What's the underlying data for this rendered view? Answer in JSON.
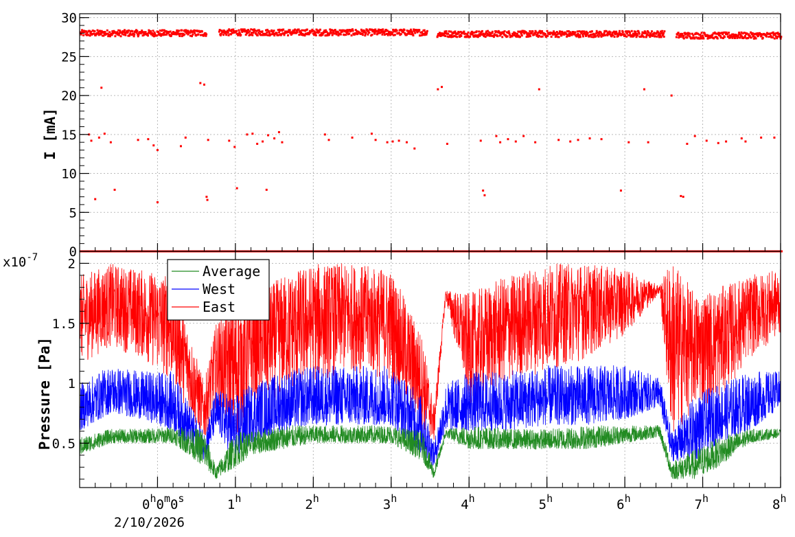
{
  "chart_data": [
    {
      "type": "scatter",
      "ylabel": "I [mA]",
      "ylim": [
        0,
        30.5
      ],
      "yticks": [
        0,
        5,
        10,
        15,
        20,
        25,
        30
      ],
      "ytick_labels": [
        "0",
        "5",
        "10",
        "15",
        "20",
        "25",
        "30"
      ],
      "grid": true,
      "series": [
        {
          "color": "#ff0000",
          "description": "beam current sampled every few seconds, mostly ~28 mA with a baseline near 0 and scattered mid-level points",
          "band_segments": [
            {
              "x": [
                -1.0,
                0.62
              ],
              "y_center": 28.0
            },
            {
              "x": [
                0.78,
                3.45
              ],
              "y_center": 28.1
            },
            {
              "x": [
                3.58,
                6.5
              ],
              "y_center": 27.9
            },
            {
              "x": [
                6.65,
                8.0
              ],
              "y_center": 27.7
            }
          ],
          "baseline_value": 0.0,
          "scattered_points": [
            [
              -0.88,
              15.0
            ],
            [
              -0.85,
              14.2
            ],
            [
              -0.8,
              6.7
            ],
            [
              -0.75,
              14.6
            ],
            [
              -0.72,
              21.0
            ],
            [
              -0.68,
              15.1
            ],
            [
              -0.6,
              14.0
            ],
            [
              -0.55,
              7.9
            ],
            [
              -0.25,
              14.3
            ],
            [
              -0.12,
              14.4
            ],
            [
              -0.05,
              13.6
            ],
            [
              0.0,
              13.0
            ],
            [
              0.0,
              6.3
            ],
            [
              0.3,
              13.5
            ],
            [
              0.36,
              14.6
            ],
            [
              0.55,
              21.6
            ],
            [
              0.6,
              21.4
            ],
            [
              0.63,
              7.0
            ],
            [
              0.64,
              6.6
            ],
            [
              0.65,
              14.3
            ],
            [
              0.92,
              14.2
            ],
            [
              0.99,
              13.4
            ],
            [
              1.02,
              8.1
            ],
            [
              1.15,
              15.0
            ],
            [
              1.22,
              15.1
            ],
            [
              1.28,
              13.8
            ],
            [
              1.35,
              14.1
            ],
            [
              1.4,
              7.9
            ],
            [
              1.42,
              14.9
            ],
            [
              1.5,
              14.5
            ],
            [
              1.56,
              15.3
            ],
            [
              1.6,
              14.0
            ],
            [
              2.15,
              15.0
            ],
            [
              2.2,
              14.3
            ],
            [
              2.5,
              14.6
            ],
            [
              2.75,
              15.1
            ],
            [
              2.8,
              14.3
            ],
            [
              2.95,
              14.0
            ],
            [
              3.02,
              14.1
            ],
            [
              3.1,
              14.2
            ],
            [
              3.2,
              14.0
            ],
            [
              3.3,
              13.2
            ],
            [
              3.6,
              20.8
            ],
            [
              3.65,
              21.1
            ],
            [
              3.72,
              13.8
            ],
            [
              4.15,
              14.2
            ],
            [
              4.18,
              7.8
            ],
            [
              4.2,
              7.2
            ],
            [
              4.35,
              14.8
            ],
            [
              4.4,
              14.0
            ],
            [
              4.5,
              14.4
            ],
            [
              4.6,
              14.1
            ],
            [
              4.7,
              14.8
            ],
            [
              4.85,
              14.0
            ],
            [
              4.9,
              20.8
            ],
            [
              5.15,
              14.3
            ],
            [
              5.3,
              14.1
            ],
            [
              5.4,
              14.3
            ],
            [
              5.55,
              14.5
            ],
            [
              5.7,
              14.4
            ],
            [
              5.95,
              7.8
            ],
            [
              6.05,
              14.0
            ],
            [
              6.25,
              20.8
            ],
            [
              6.3,
              14.0
            ],
            [
              6.6,
              20.0
            ],
            [
              6.72,
              7.1
            ],
            [
              6.75,
              7.0
            ],
            [
              6.8,
              13.8
            ],
            [
              6.9,
              14.8
            ],
            [
              7.05,
              14.2
            ],
            [
              7.2,
              13.9
            ],
            [
              7.3,
              14.1
            ],
            [
              7.5,
              14.5
            ],
            [
              7.55,
              14.1
            ],
            [
              7.75,
              14.6
            ],
            [
              7.92,
              14.6
            ]
          ]
        }
      ]
    },
    {
      "type": "line",
      "ylabel": "Pressure [Pa]",
      "y_multiplier": "x10",
      "y_exponent": "-7",
      "ylim": [
        0.13,
        2.1
      ],
      "yticks": [
        0.5,
        1.0,
        1.5,
        2.0
      ],
      "ytick_labels": [
        "0.5",
        "1",
        "1.5",
        "2"
      ],
      "xlim": [
        -1.0,
        8.0
      ],
      "xticks": [
        0,
        1,
        2,
        3,
        4,
        5,
        6,
        7,
        8
      ],
      "x_tick_hours": [
        "0",
        "1",
        "2",
        "3",
        "4",
        "5",
        "6",
        "7",
        "8"
      ],
      "x_tick_hour_suffix": "h",
      "x_origin_label": {
        "h": "0",
        "m": "0",
        "s": "0",
        "date": "2/10/2026"
      },
      "grid": true,
      "legend_placement": "top-left",
      "series": [
        {
          "name": "Average",
          "color": "#228b22",
          "envelope": [
            [
              -1.0,
              0.4,
              0.55
            ],
            [
              -0.6,
              0.5,
              0.62
            ],
            [
              -0.2,
              0.5,
              0.62
            ],
            [
              0.2,
              0.5,
              0.64
            ],
            [
              0.6,
              0.3,
              0.62
            ],
            [
              0.75,
              0.2,
              0.3
            ],
            [
              1.0,
              0.3,
              0.6
            ],
            [
              1.2,
              0.4,
              0.6
            ],
            [
              1.6,
              0.45,
              0.65
            ],
            [
              2.0,
              0.5,
              0.65
            ],
            [
              2.5,
              0.5,
              0.65
            ],
            [
              3.0,
              0.5,
              0.65
            ],
            [
              3.4,
              0.35,
              0.6
            ],
            [
              3.55,
              0.2,
              0.3
            ],
            [
              3.7,
              0.55,
              0.62
            ],
            [
              4.0,
              0.45,
              0.65
            ],
            [
              4.5,
              0.45,
              0.62
            ],
            [
              5.0,
              0.45,
              0.62
            ],
            [
              5.5,
              0.45,
              0.65
            ],
            [
              6.0,
              0.5,
              0.65
            ],
            [
              6.45,
              0.55,
              0.65
            ],
            [
              6.6,
              0.2,
              0.35
            ],
            [
              6.9,
              0.2,
              0.45
            ],
            [
              7.2,
              0.3,
              0.55
            ],
            [
              7.6,
              0.5,
              0.62
            ],
            [
              8.0,
              0.55,
              0.62
            ]
          ]
        },
        {
          "name": "West",
          "color": "#0000ff",
          "envelope": [
            [
              -1.0,
              0.6,
              1.0
            ],
            [
              -0.6,
              0.75,
              1.15
            ],
            [
              -0.2,
              0.7,
              1.1
            ],
            [
              0.2,
              0.6,
              1.1
            ],
            [
              0.6,
              0.35,
              0.6
            ],
            [
              0.75,
              0.6,
              0.95
            ],
            [
              1.0,
              0.35,
              0.9
            ],
            [
              1.2,
              0.5,
              1.0
            ],
            [
              1.6,
              0.6,
              1.1
            ],
            [
              2.0,
              0.65,
              1.15
            ],
            [
              2.5,
              0.65,
              1.15
            ],
            [
              3.0,
              0.65,
              1.15
            ],
            [
              3.4,
              0.4,
              0.9
            ],
            [
              3.55,
              0.3,
              0.5
            ],
            [
              3.7,
              0.6,
              1.0
            ],
            [
              4.0,
              0.6,
              1.1
            ],
            [
              4.5,
              0.6,
              1.1
            ],
            [
              5.0,
              0.65,
              1.15
            ],
            [
              5.5,
              0.65,
              1.15
            ],
            [
              6.0,
              0.7,
              1.15
            ],
            [
              6.45,
              0.8,
              1.05
            ],
            [
              6.6,
              0.35,
              0.6
            ],
            [
              6.9,
              0.35,
              0.9
            ],
            [
              7.2,
              0.5,
              1.0
            ],
            [
              7.6,
              0.6,
              1.1
            ],
            [
              8.0,
              0.8,
              1.1
            ]
          ]
        },
        {
          "name": "East",
          "color": "#ff0000",
          "envelope": [
            [
              -1.0,
              1.15,
              1.9
            ],
            [
              -0.6,
              1.3,
              2.0
            ],
            [
              -0.2,
              1.2,
              1.95
            ],
            [
              0.2,
              1.0,
              1.9
            ],
            [
              0.6,
              0.5,
              1.0
            ],
            [
              0.75,
              0.8,
              1.5
            ],
            [
              1.0,
              0.5,
              1.7
            ],
            [
              1.2,
              0.8,
              1.7
            ],
            [
              1.6,
              0.9,
              1.9
            ],
            [
              2.0,
              1.0,
              2.0
            ],
            [
              2.5,
              1.1,
              2.0
            ],
            [
              3.0,
              1.0,
              1.95
            ],
            [
              3.4,
              0.6,
              1.4
            ],
            [
              3.55,
              0.5,
              0.8
            ],
            [
              3.7,
              1.7,
              1.78
            ],
            [
              4.0,
              0.8,
              1.75
            ],
            [
              4.5,
              1.0,
              1.9
            ],
            [
              5.0,
              1.1,
              2.0
            ],
            [
              5.5,
              1.2,
              2.0
            ],
            [
              6.0,
              1.4,
              1.95
            ],
            [
              6.45,
              1.75,
              1.82
            ],
            [
              6.6,
              0.5,
              2.05
            ],
            [
              6.9,
              0.8,
              1.75
            ],
            [
              7.2,
              0.85,
              1.8
            ],
            [
              7.6,
              1.2,
              1.9
            ],
            [
              8.0,
              1.4,
              1.95
            ]
          ]
        }
      ]
    }
  ]
}
